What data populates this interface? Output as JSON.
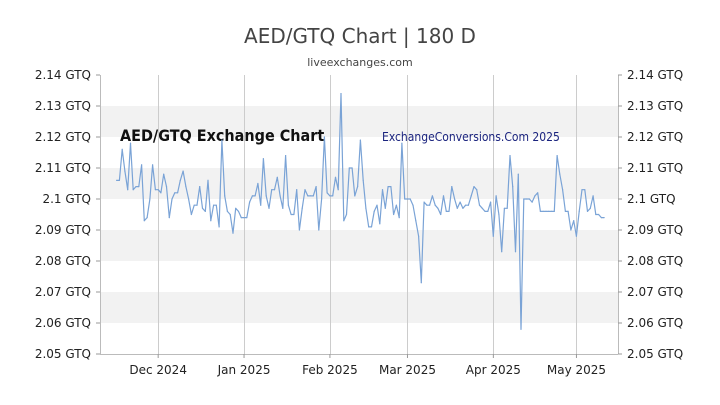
{
  "header": {
    "title": "AED/GTQ Chart | 180 D",
    "subtitle": "liveexchanges.com"
  },
  "chart_data": {
    "type": "line",
    "title": "AED/GTQ Chart | 180 D",
    "subtitle": "liveexchanges.com",
    "inner_title": "AED/GTQ Exchange Chart",
    "watermark": "ExchangeConversions.Com 2025",
    "ylim": [
      2.05,
      2.14
    ],
    "y_ticks": [
      2.05,
      2.06,
      2.07,
      2.08,
      2.09,
      2.1,
      2.11,
      2.12,
      2.13,
      2.14
    ],
    "y_tick_labels": [
      "2.05 GTQ",
      "2.06 GTQ",
      "2.07 GTQ",
      "2.08 GTQ",
      "2.09 GTQ",
      "2.1 GTQ",
      "2.11 GTQ",
      "2.12 GTQ",
      "2.13 GTQ",
      "2.14 GTQ"
    ],
    "x_range": [
      "2024-11-10",
      "2025-05-16"
    ],
    "x_ticks": [
      {
        "date": "2024-12-01",
        "label": "Dec 2024"
      },
      {
        "date": "2025-01-01",
        "label": "Jan 2025"
      },
      {
        "date": "2025-02-01",
        "label": "Feb 2025"
      },
      {
        "date": "2025-03-01",
        "label": "Mar 2025"
      },
      {
        "date": "2025-04-01",
        "label": "Apr 2025"
      },
      {
        "date": "2025-05-01",
        "label": "May 2025"
      }
    ],
    "grid": true,
    "series": [
      {
        "color": "#7aa3d6",
        "points": [
          {
            "x": "2024-11-16",
            "y": 2.106
          },
          {
            "x": "2024-11-17",
            "y": 2.106
          },
          {
            "x": "2024-11-18",
            "y": 2.116
          },
          {
            "x": "2024-11-19",
            "y": 2.109
          },
          {
            "x": "2024-11-20",
            "y": 2.103
          },
          {
            "x": "2024-11-21",
            "y": 2.118
          },
          {
            "x": "2024-11-22",
            "y": 2.103
          },
          {
            "x": "2024-11-23",
            "y": 2.104
          },
          {
            "x": "2024-11-24",
            "y": 2.104
          },
          {
            "x": "2024-11-25",
            "y": 2.111
          },
          {
            "x": "2024-11-26",
            "y": 2.093
          },
          {
            "x": "2024-11-27",
            "y": 2.094
          },
          {
            "x": "2024-11-28",
            "y": 2.1
          },
          {
            "x": "2024-11-29",
            "y": 2.111
          },
          {
            "x": "2024-11-30",
            "y": 2.103
          },
          {
            "x": "2024-12-01",
            "y": 2.103
          },
          {
            "x": "2024-12-02",
            "y": 2.102
          },
          {
            "x": "2024-12-03",
            "y": 2.108
          },
          {
            "x": "2024-12-04",
            "y": 2.104
          },
          {
            "x": "2024-12-05",
            "y": 2.094
          },
          {
            "x": "2024-12-06",
            "y": 2.1
          },
          {
            "x": "2024-12-07",
            "y": 2.102
          },
          {
            "x": "2024-12-08",
            "y": 2.102
          },
          {
            "x": "2024-12-09",
            "y": 2.106
          },
          {
            "x": "2024-12-10",
            "y": 2.109
          },
          {
            "x": "2024-12-11",
            "y": 2.104
          },
          {
            "x": "2024-12-12",
            "y": 2.1
          },
          {
            "x": "2024-12-13",
            "y": 2.095
          },
          {
            "x": "2024-12-14",
            "y": 2.098
          },
          {
            "x": "2024-12-15",
            "y": 2.098
          },
          {
            "x": "2024-12-16",
            "y": 2.104
          },
          {
            "x": "2024-12-17",
            "y": 2.097
          },
          {
            "x": "2024-12-18",
            "y": 2.096
          },
          {
            "x": "2024-12-19",
            "y": 2.106
          },
          {
            "x": "2024-12-20",
            "y": 2.093
          },
          {
            "x": "2024-12-21",
            "y": 2.098
          },
          {
            "x": "2024-12-22",
            "y": 2.098
          },
          {
            "x": "2024-12-23",
            "y": 2.091
          },
          {
            "x": "2024-12-24",
            "y": 2.119
          },
          {
            "x": "2024-12-25",
            "y": 2.101
          },
          {
            "x": "2024-12-26",
            "y": 2.096
          },
          {
            "x": "2024-12-27",
            "y": 2.095
          },
          {
            "x": "2024-12-28",
            "y": 2.089
          },
          {
            "x": "2024-12-29",
            "y": 2.097
          },
          {
            "x": "2024-12-30",
            "y": 2.096
          },
          {
            "x": "2024-12-31",
            "y": 2.094
          },
          {
            "x": "2025-01-01",
            "y": 2.094
          },
          {
            "x": "2025-01-02",
            "y": 2.094
          },
          {
            "x": "2025-01-03",
            "y": 2.099
          },
          {
            "x": "2025-01-04",
            "y": 2.101
          },
          {
            "x": "2025-01-05",
            "y": 2.101
          },
          {
            "x": "2025-01-06",
            "y": 2.105
          },
          {
            "x": "2025-01-07",
            "y": 2.098
          },
          {
            "x": "2025-01-08",
            "y": 2.113
          },
          {
            "x": "2025-01-09",
            "y": 2.101
          },
          {
            "x": "2025-01-10",
            "y": 2.097
          },
          {
            "x": "2025-01-11",
            "y": 2.103
          },
          {
            "x": "2025-01-12",
            "y": 2.103
          },
          {
            "x": "2025-01-13",
            "y": 2.107
          },
          {
            "x": "2025-01-14",
            "y": 2.101
          },
          {
            "x": "2025-01-15",
            "y": 2.097
          },
          {
            "x": "2025-01-16",
            "y": 2.114
          },
          {
            "x": "2025-01-17",
            "y": 2.098
          },
          {
            "x": "2025-01-18",
            "y": 2.095
          },
          {
            "x": "2025-01-19",
            "y": 2.095
          },
          {
            "x": "2025-01-20",
            "y": 2.103
          },
          {
            "x": "2025-01-21",
            "y": 2.09
          },
          {
            "x": "2025-01-22",
            "y": 2.097
          },
          {
            "x": "2025-01-23",
            "y": 2.103
          },
          {
            "x": "2025-01-24",
            "y": 2.101
          },
          {
            "x": "2025-01-25",
            "y": 2.101
          },
          {
            "x": "2025-01-26",
            "y": 2.101
          },
          {
            "x": "2025-01-27",
            "y": 2.104
          },
          {
            "x": "2025-01-28",
            "y": 2.09
          },
          {
            "x": "2025-01-29",
            "y": 2.1
          },
          {
            "x": "2025-01-30",
            "y": 2.12
          },
          {
            "x": "2025-01-31",
            "y": 2.102
          },
          {
            "x": "2025-02-01",
            "y": 2.101
          },
          {
            "x": "2025-02-02",
            "y": 2.101
          },
          {
            "x": "2025-02-03",
            "y": 2.107
          },
          {
            "x": "2025-02-04",
            "y": 2.103
          },
          {
            "x": "2025-02-05",
            "y": 2.134
          },
          {
            "x": "2025-02-06",
            "y": 2.093
          },
          {
            "x": "2025-02-07",
            "y": 2.095
          },
          {
            "x": "2025-02-08",
            "y": 2.11
          },
          {
            "x": "2025-02-09",
            "y": 2.11
          },
          {
            "x": "2025-02-10",
            "y": 2.101
          },
          {
            "x": "2025-02-11",
            "y": 2.104
          },
          {
            "x": "2025-02-12",
            "y": 2.119
          },
          {
            "x": "2025-02-13",
            "y": 2.106
          },
          {
            "x": "2025-02-14",
            "y": 2.097
          },
          {
            "x": "2025-02-15",
            "y": 2.091
          },
          {
            "x": "2025-02-16",
            "y": 2.091
          },
          {
            "x": "2025-02-17",
            "y": 2.096
          },
          {
            "x": "2025-02-18",
            "y": 2.098
          },
          {
            "x": "2025-02-19",
            "y": 2.092
          },
          {
            "x": "2025-02-20",
            "y": 2.103
          },
          {
            "x": "2025-02-21",
            "y": 2.097
          },
          {
            "x": "2025-02-22",
            "y": 2.104
          },
          {
            "x": "2025-02-23",
            "y": 2.104
          },
          {
            "x": "2025-02-24",
            "y": 2.095
          },
          {
            "x": "2025-02-25",
            "y": 2.098
          },
          {
            "x": "2025-02-26",
            "y": 2.094
          },
          {
            "x": "2025-02-27",
            "y": 2.118
          },
          {
            "x": "2025-02-28",
            "y": 2.1
          },
          {
            "x": "2025-03-01",
            "y": 2.1
          },
          {
            "x": "2025-03-02",
            "y": 2.1
          },
          {
            "x": "2025-03-03",
            "y": 2.098
          },
          {
            "x": "2025-03-04",
            "y": 2.093
          },
          {
            "x": "2025-03-05",
            "y": 2.088
          },
          {
            "x": "2025-03-06",
            "y": 2.073
          },
          {
            "x": "2025-03-07",
            "y": 2.099
          },
          {
            "x": "2025-03-08",
            "y": 2.098
          },
          {
            "x": "2025-03-09",
            "y": 2.098
          },
          {
            "x": "2025-03-10",
            "y": 2.101
          },
          {
            "x": "2025-03-11",
            "y": 2.098
          },
          {
            "x": "2025-03-12",
            "y": 2.097
          },
          {
            "x": "2025-03-13",
            "y": 2.095
          },
          {
            "x": "2025-03-14",
            "y": 2.101
          },
          {
            "x": "2025-03-15",
            "y": 2.096
          },
          {
            "x": "2025-03-16",
            "y": 2.096
          },
          {
            "x": "2025-03-17",
            "y": 2.104
          },
          {
            "x": "2025-03-18",
            "y": 2.1
          },
          {
            "x": "2025-03-19",
            "y": 2.097
          },
          {
            "x": "2025-03-20",
            "y": 2.099
          },
          {
            "x": "2025-03-21",
            "y": 2.097
          },
          {
            "x": "2025-03-22",
            "y": 2.098
          },
          {
            "x": "2025-03-23",
            "y": 2.098
          },
          {
            "x": "2025-03-24",
            "y": 2.101
          },
          {
            "x": "2025-03-25",
            "y": 2.104
          },
          {
            "x": "2025-03-26",
            "y": 2.103
          },
          {
            "x": "2025-03-27",
            "y": 2.098
          },
          {
            "x": "2025-03-28",
            "y": 2.097
          },
          {
            "x": "2025-03-29",
            "y": 2.096
          },
          {
            "x": "2025-03-30",
            "y": 2.096
          },
          {
            "x": "2025-03-31",
            "y": 2.099
          },
          {
            "x": "2025-04-01",
            "y": 2.088
          },
          {
            "x": "2025-04-02",
            "y": 2.101
          },
          {
            "x": "2025-04-03",
            "y": 2.095
          },
          {
            "x": "2025-04-04",
            "y": 2.083
          },
          {
            "x": "2025-04-05",
            "y": 2.097
          },
          {
            "x": "2025-04-06",
            "y": 2.097
          },
          {
            "x": "2025-04-07",
            "y": 2.114
          },
          {
            "x": "2025-04-08",
            "y": 2.104
          },
          {
            "x": "2025-04-09",
            "y": 2.083
          },
          {
            "x": "2025-04-10",
            "y": 2.108
          },
          {
            "x": "2025-04-11",
            "y": 2.058
          },
          {
            "x": "2025-04-12",
            "y": 2.1
          },
          {
            "x": "2025-04-13",
            "y": 2.1
          },
          {
            "x": "2025-04-14",
            "y": 2.1
          },
          {
            "x": "2025-04-15",
            "y": 2.099
          },
          {
            "x": "2025-04-16",
            "y": 2.101
          },
          {
            "x": "2025-04-17",
            "y": 2.102
          },
          {
            "x": "2025-04-18",
            "y": 2.096
          },
          {
            "x": "2025-04-19",
            "y": 2.096
          },
          {
            "x": "2025-04-20",
            "y": 2.096
          },
          {
            "x": "2025-04-21",
            "y": 2.096
          },
          {
            "x": "2025-04-22",
            "y": 2.096
          },
          {
            "x": "2025-04-23",
            "y": 2.096
          },
          {
            "x": "2025-04-24",
            "y": 2.114
          },
          {
            "x": "2025-04-25",
            "y": 2.108
          },
          {
            "x": "2025-04-26",
            "y": 2.103
          },
          {
            "x": "2025-04-27",
            "y": 2.096
          },
          {
            "x": "2025-04-28",
            "y": 2.096
          },
          {
            "x": "2025-04-29",
            "y": 2.09
          },
          {
            "x": "2025-04-30",
            "y": 2.093
          },
          {
            "x": "2025-05-01",
            "y": 2.088
          },
          {
            "x": "2025-05-02",
            "y": 2.096
          },
          {
            "x": "2025-05-03",
            "y": 2.103
          },
          {
            "x": "2025-05-04",
            "y": 2.103
          },
          {
            "x": "2025-05-05",
            "y": 2.096
          },
          {
            "x": "2025-05-06",
            "y": 2.097
          },
          {
            "x": "2025-05-07",
            "y": 2.101
          },
          {
            "x": "2025-05-08",
            "y": 2.095
          },
          {
            "x": "2025-05-09",
            "y": 2.095
          },
          {
            "x": "2025-05-10",
            "y": 2.094
          },
          {
            "x": "2025-05-11",
            "y": 2.094
          }
        ]
      }
    ]
  }
}
